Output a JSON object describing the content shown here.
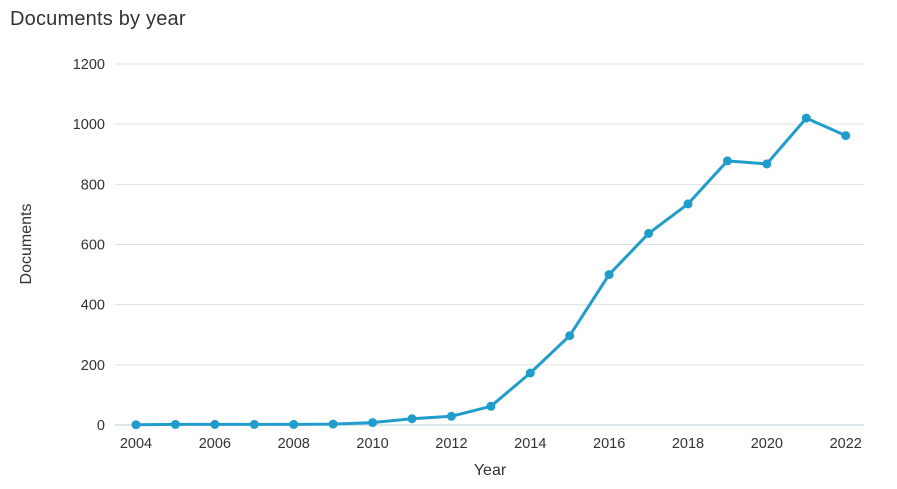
{
  "title": "Documents by year",
  "colors": {
    "line": "#219dcc",
    "marker": "#219dcc",
    "grid": "#e0e0e0",
    "axis_line": "#b9cdd7",
    "text": "#333333",
    "background": "#ffffff"
  },
  "chart_data": {
    "type": "line",
    "title": "Documents by year",
    "xlabel": "Year",
    "ylabel": "Documents",
    "x": [
      2004,
      2005,
      2006,
      2007,
      2008,
      2009,
      2010,
      2011,
      2012,
      2013,
      2014,
      2015,
      2016,
      2017,
      2018,
      2019,
      2020,
      2021,
      2022
    ],
    "values": [
      1,
      2,
      2,
      2,
      2,
      3,
      8,
      21,
      29,
      62,
      173,
      297,
      500,
      637,
      735,
      878,
      868,
      1020,
      962
    ],
    "ylim": [
      0,
      1200
    ],
    "ytick_step": 200,
    "ytick_labels": [
      "0",
      "200",
      "400",
      "600",
      "800",
      "1000",
      "1200"
    ],
    "xtick_labels": [
      "2004",
      "2006",
      "2008",
      "2010",
      "2012",
      "2014",
      "2016",
      "2018",
      "2020",
      "2022"
    ],
    "xtick_step": 2,
    "grid": "horizontal",
    "legend": "none",
    "marker": "circle"
  }
}
